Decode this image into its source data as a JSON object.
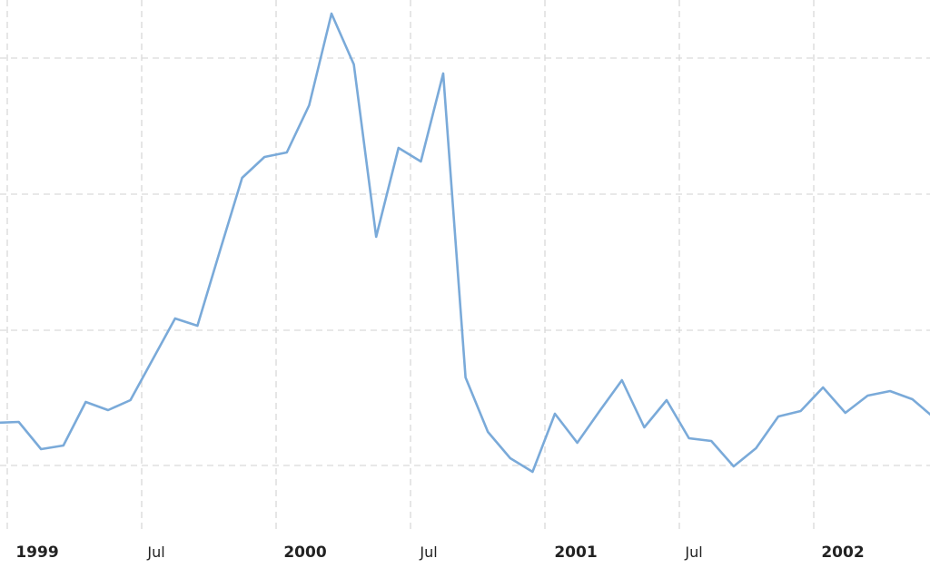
{
  "chart_data": {
    "type": "line",
    "title": "",
    "xlabel": "",
    "ylabel": "",
    "grid": true,
    "legend": "none",
    "colors": {
      "line": "#7aaad9",
      "grid": "#d9d9d9",
      "text": "#222222",
      "background": "#ffffff"
    },
    "x_ticks": [
      {
        "label": "1999",
        "major": true
      },
      {
        "label": "Jul",
        "major": false
      },
      {
        "label": "2000",
        "major": true
      },
      {
        "label": "Jul",
        "major": false
      },
      {
        "label": "2001",
        "major": true
      },
      {
        "label": "Jul",
        "major": false
      },
      {
        "label": "2002",
        "major": true
      }
    ],
    "series": [
      {
        "values": [
          466,
          465,
          495,
          491,
          443,
          452,
          441,
          396,
          351,
          359,
          277,
          196,
          173,
          168,
          116,
          15,
          71,
          261,
          163,
          178,
          81,
          416,
          476,
          505,
          520,
          456,
          488,
          453,
          419,
          471,
          441,
          483,
          486,
          514,
          494,
          459,
          453,
          427,
          455,
          436,
          431,
          440,
          461
        ]
      }
    ]
  }
}
